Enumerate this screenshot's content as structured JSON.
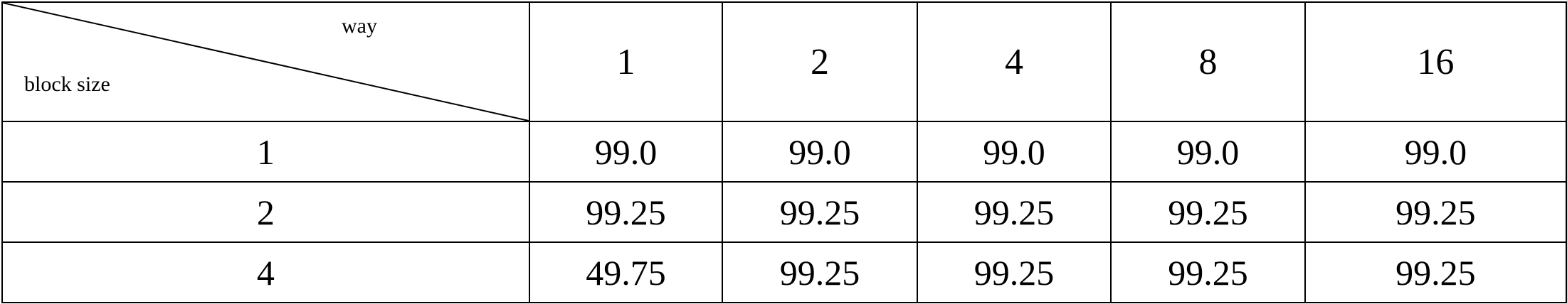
{
  "table": {
    "corner": {
      "top_label": "way",
      "bottom_label": "block size"
    },
    "columns": [
      "1",
      "2",
      "4",
      "8",
      "16"
    ],
    "rows": [
      {
        "label": "1",
        "values": [
          "99.0",
          "99.0",
          "99.0",
          "99.0",
          "99.0"
        ]
      },
      {
        "label": "2",
        "values": [
          "99.25",
          "99.25",
          "99.25",
          "99.25",
          "99.25"
        ]
      },
      {
        "label": "4",
        "values": [
          "49.75",
          "99.25",
          "99.25",
          "99.25",
          "99.25"
        ]
      }
    ]
  }
}
